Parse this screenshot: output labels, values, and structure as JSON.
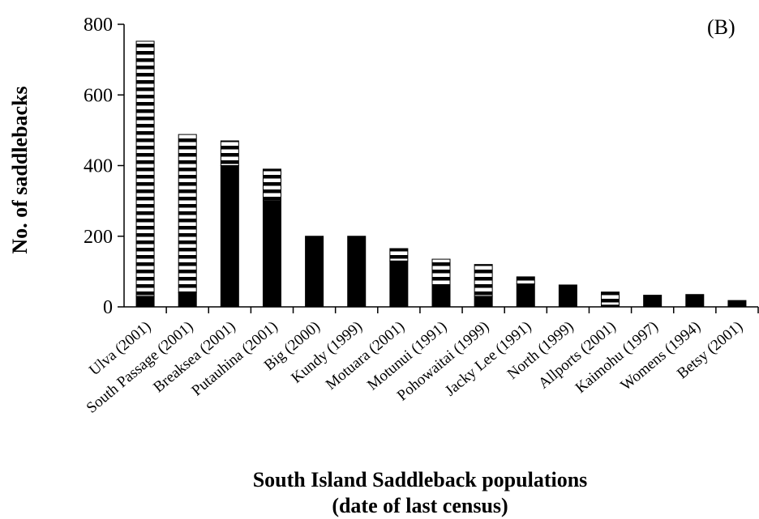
{
  "chart_data": {
    "type": "bar",
    "stacked": true,
    "panel_label": "(B)",
    "title": "",
    "xlabel_lines": [
      "South Island Saddleback populations",
      "(date of last census)"
    ],
    "ylabel": "No. of saddlebacks",
    "ylim": [
      0,
      800
    ],
    "yticks": [
      0,
      200,
      400,
      600,
      800
    ],
    "grid": false,
    "colors": {
      "solid": "#000000",
      "striped_dark": "#000000",
      "striped_light": "#ffffff"
    },
    "categories": [
      "Ulva (2001)",
      "South Passage (2001)",
      "Breaksea (2001)",
      "Putauhina (2001)",
      "Big (2000)",
      "Kundy (1999)",
      "Motuara (2001)",
      "Motunui (1991)",
      "Pohowaitai (1999)",
      "Jacky Lee (1991)",
      "North (1999)",
      "Allports (2001)",
      "Kaimohu (1997)",
      "Womens (1994)",
      "Betsy (2001)"
    ],
    "series": [
      {
        "pattern": "solid",
        "values": [
          30,
          40,
          400,
          300,
          200,
          200,
          130,
          60,
          30,
          65,
          62,
          5,
          33,
          35,
          18
        ]
      },
      {
        "pattern": "striped",
        "values": [
          722,
          448,
          70,
          90,
          0,
          0,
          35,
          75,
          90,
          20,
          0,
          37,
          0,
          0,
          0
        ]
      }
    ]
  }
}
